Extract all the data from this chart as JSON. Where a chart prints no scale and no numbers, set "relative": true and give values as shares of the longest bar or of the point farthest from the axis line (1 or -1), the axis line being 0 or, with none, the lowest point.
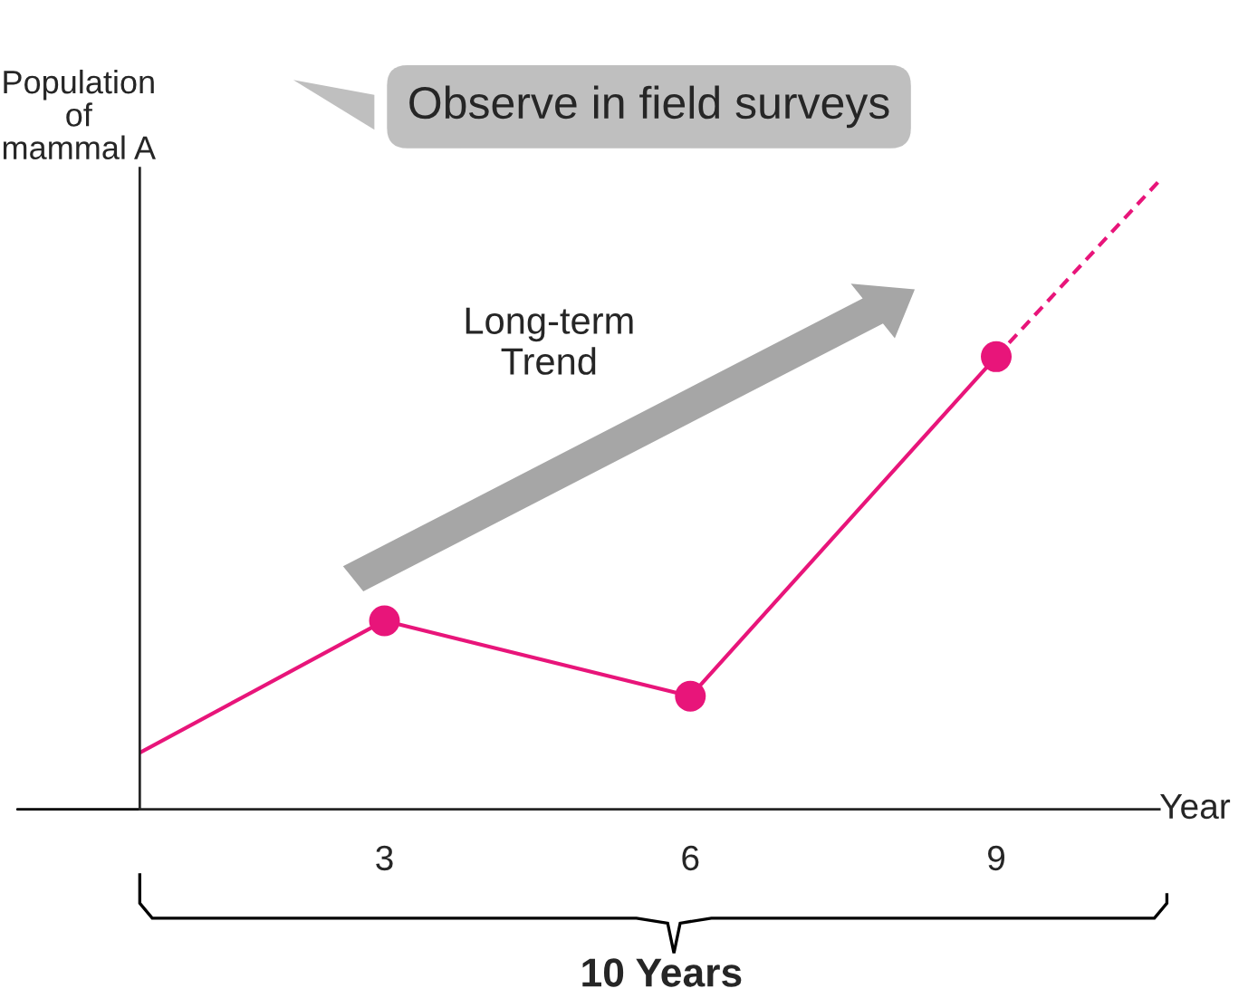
{
  "chart_data": {
    "type": "line",
    "relative": true,
    "ylabel": "Population\nof\nmammal A",
    "xlabel": "Year",
    "xlim": [
      0.6,
      10.6
    ],
    "xticks": [
      3,
      6,
      9
    ],
    "grid": false,
    "series": [
      {
        "type": "line",
        "color": "#e8157a",
        "x": [
          0.6,
          3,
          6,
          9
        ],
        "values": [
          0.09,
          0.3,
          0.18,
          0.72
        ],
        "marker": "none",
        "line_style": "solid"
      },
      {
        "type": "scatter",
        "color": "#e8157a",
        "x": [
          3,
          6,
          9
        ],
        "values": [
          0.3,
          0.18,
          0.72
        ],
        "marker": "circle"
      },
      {
        "type": "line",
        "color": "#e8157a",
        "x": [
          9,
          10.6
        ],
        "values": [
          0.72,
          1.0
        ],
        "marker": "none",
        "line_style": "dashed"
      }
    ],
    "annotations": [
      "Observe in field surveys",
      "Long-term\nTrend",
      "10 Years"
    ]
  }
}
